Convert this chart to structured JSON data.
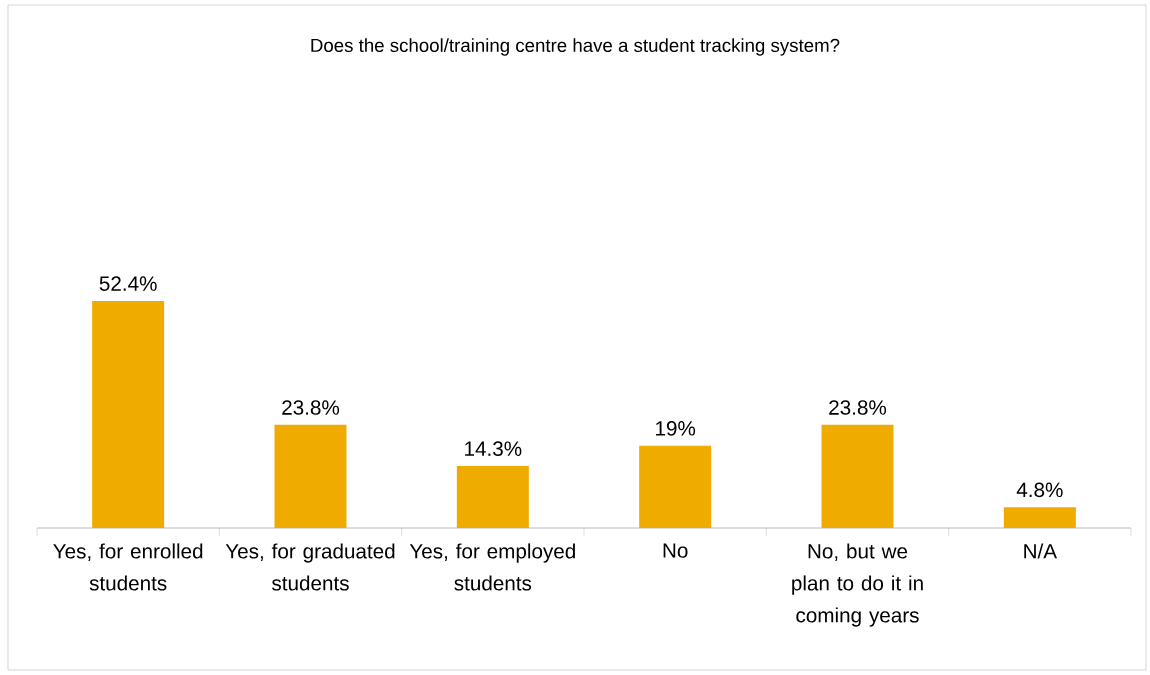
{
  "chart_data": {
    "type": "bar",
    "title": "Does the school/training centre have a student tracking system?",
    "categories": [
      "Yes, for enrolled students",
      "Yes, for graduated students",
      "Yes, for employed students",
      "No",
      "No, but we plan to do it in coming years",
      "N/A"
    ],
    "values": [
      52.4,
      23.8,
      14.3,
      19,
      23.8,
      4.8
    ],
    "value_labels": [
      "52.4%",
      "23.8%",
      "14.3%",
      "19%",
      "23.8%",
      "4.8%"
    ],
    "color": "#f0ab00"
  }
}
